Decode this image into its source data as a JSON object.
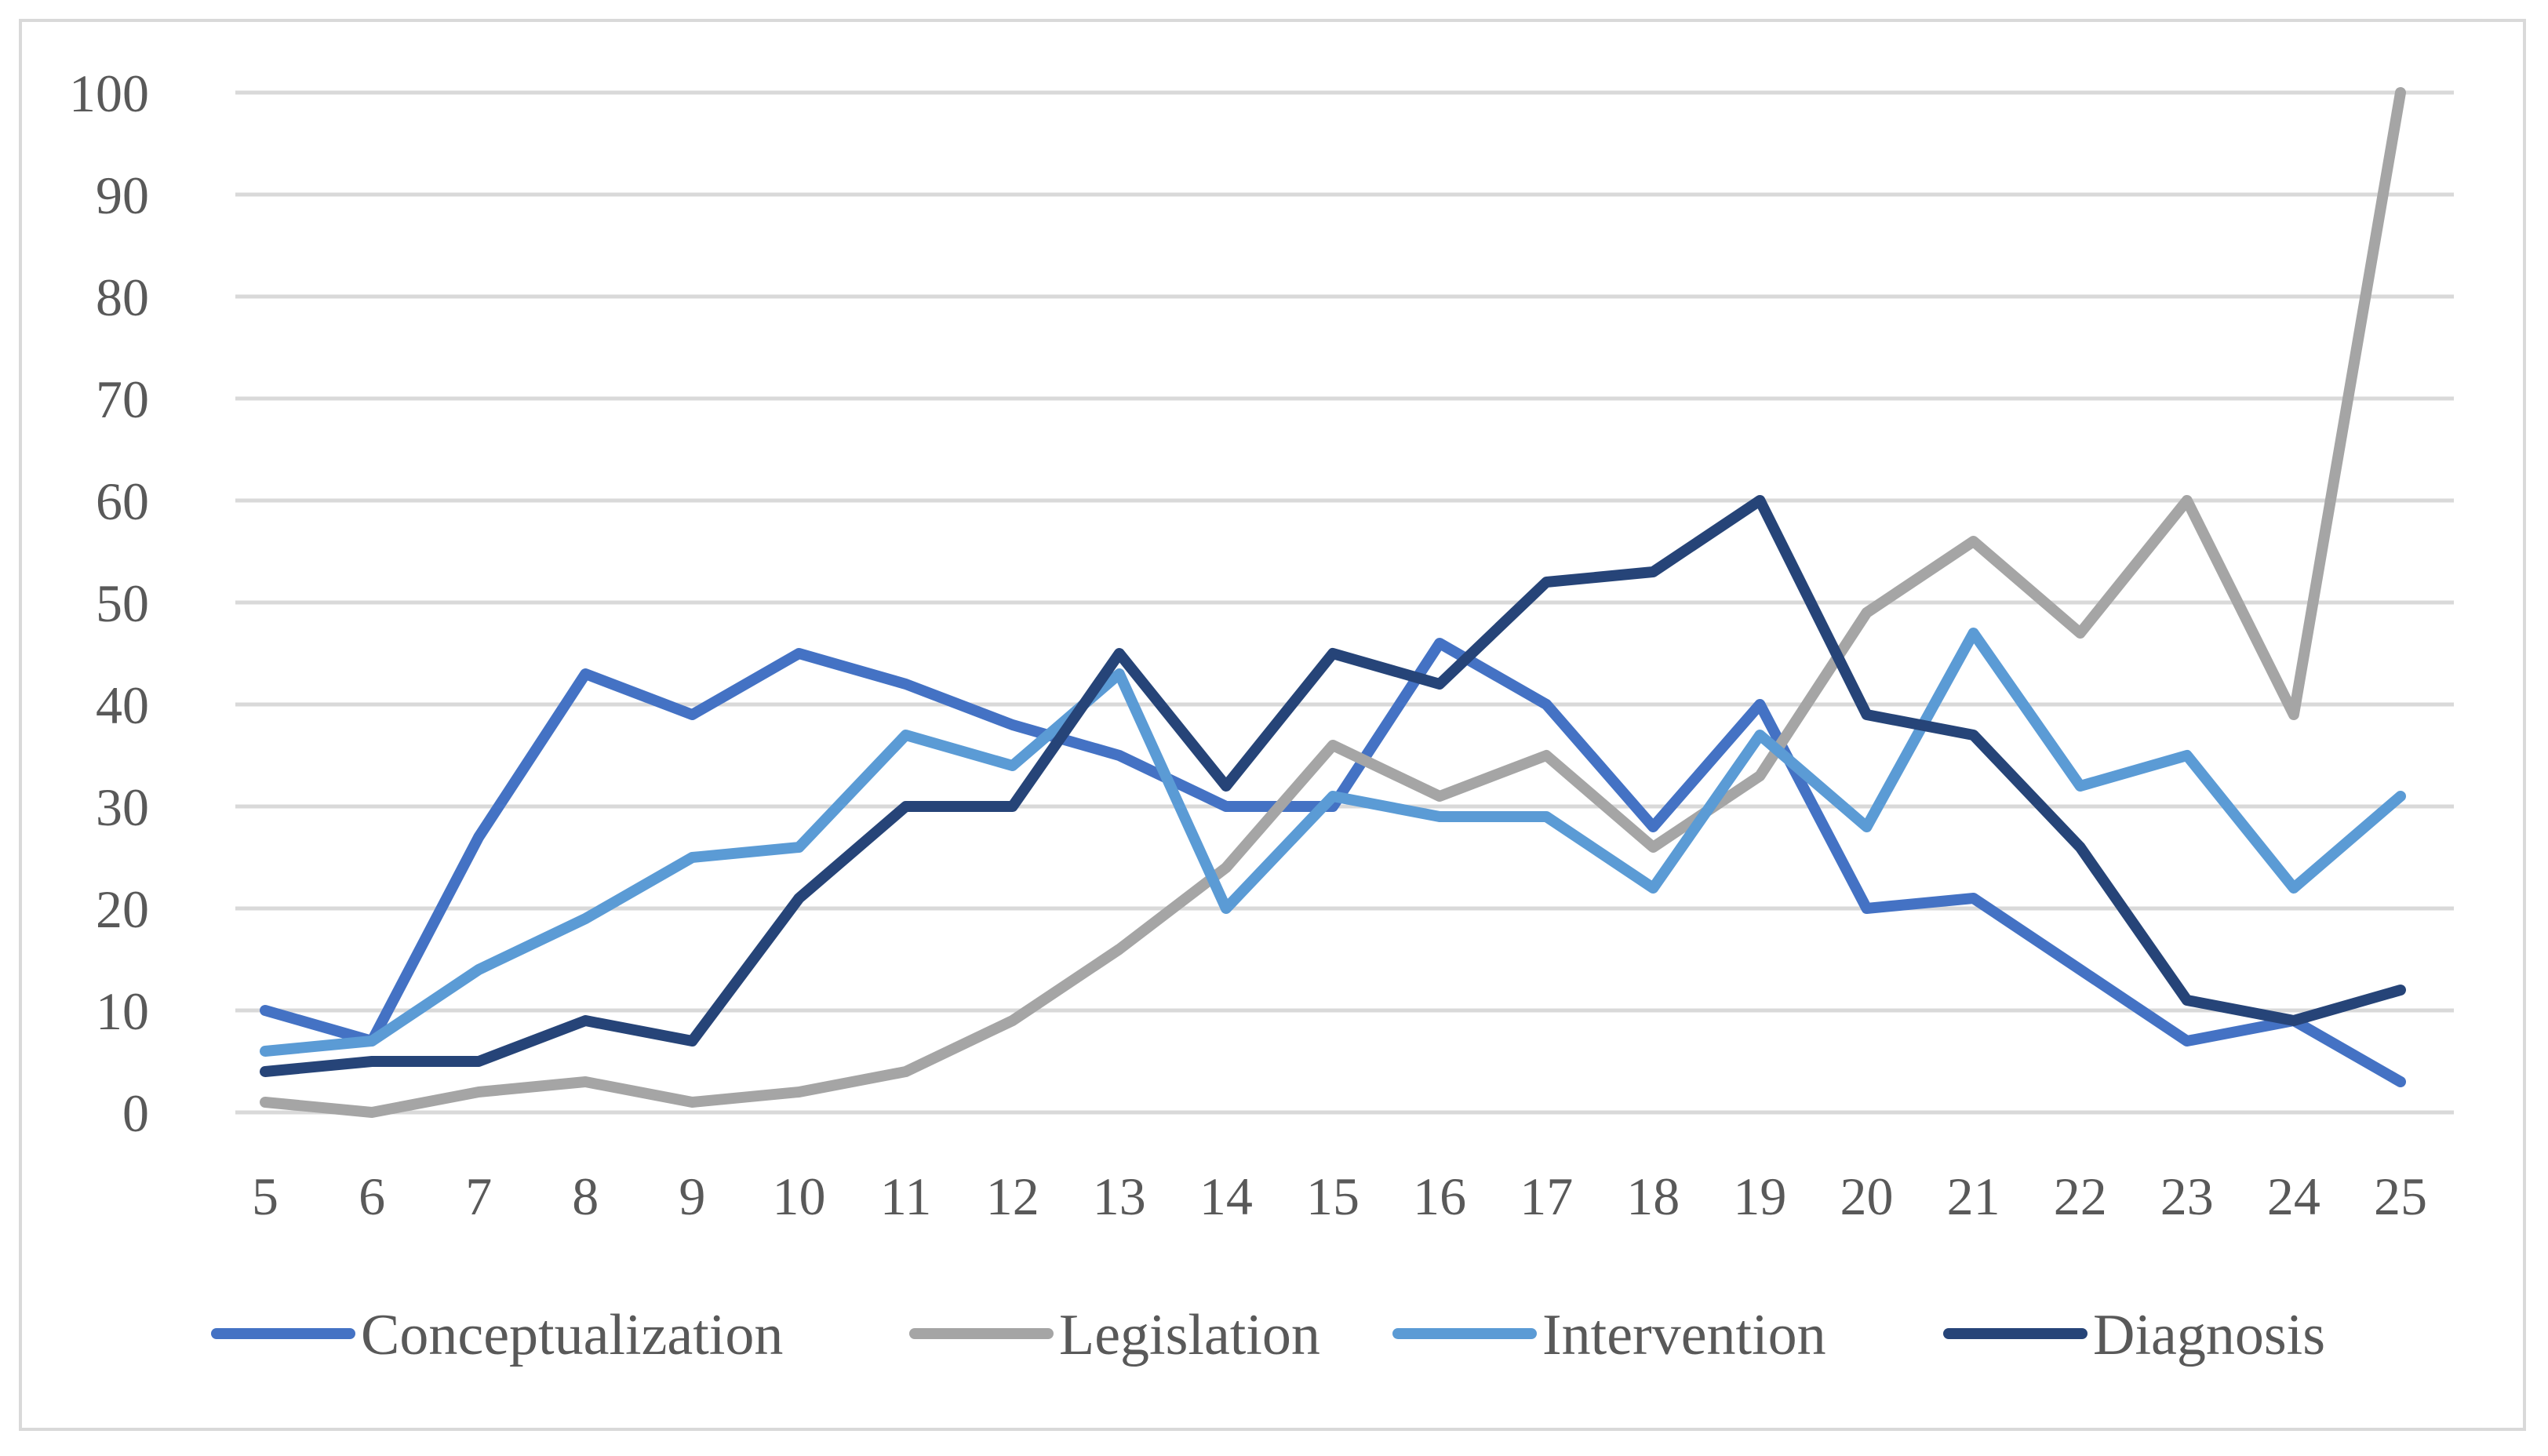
{
  "chart_data": {
    "type": "line",
    "title": "",
    "xlabel": "",
    "ylabel": "",
    "x": [
      5,
      6,
      7,
      8,
      9,
      10,
      11,
      12,
      13,
      14,
      15,
      16,
      17,
      18,
      19,
      20,
      21,
      22,
      23,
      24,
      25
    ],
    "y_ticks": [
      0,
      10,
      20,
      30,
      40,
      50,
      60,
      70,
      80,
      90,
      100
    ],
    "ylim": [
      0,
      100
    ],
    "grid": true,
    "legend_position": "bottom",
    "series": [
      {
        "name": "Conceptualization",
        "color": "#4472c4",
        "values": [
          10,
          7,
          27,
          43,
          39,
          45,
          42,
          38,
          35,
          30,
          30,
          46,
          40,
          28,
          40,
          20,
          21,
          14,
          7,
          9,
          3
        ]
      },
      {
        "name": "Legislation",
        "color": "#a5a5a5",
        "values": [
          1,
          0,
          2,
          3,
          1,
          2,
          4,
          9,
          16,
          24,
          36,
          31,
          35,
          26,
          33,
          49,
          56,
          47,
          60,
          39,
          100
        ]
      },
      {
        "name": "Intervention",
        "color": "#5b9bd5",
        "values": [
          6,
          7,
          14,
          19,
          25,
          26,
          37,
          34,
          43,
          20,
          31,
          29,
          29,
          22,
          37,
          28,
          47,
          32,
          35,
          22,
          31
        ]
      },
      {
        "name": "Diagnosis",
        "color": "#264478",
        "values": [
          4,
          5,
          5,
          9,
          7,
          21,
          30,
          30,
          45,
          32,
          45,
          42,
          52,
          53,
          60,
          39,
          37,
          26,
          11,
          9,
          12
        ]
      }
    ]
  }
}
